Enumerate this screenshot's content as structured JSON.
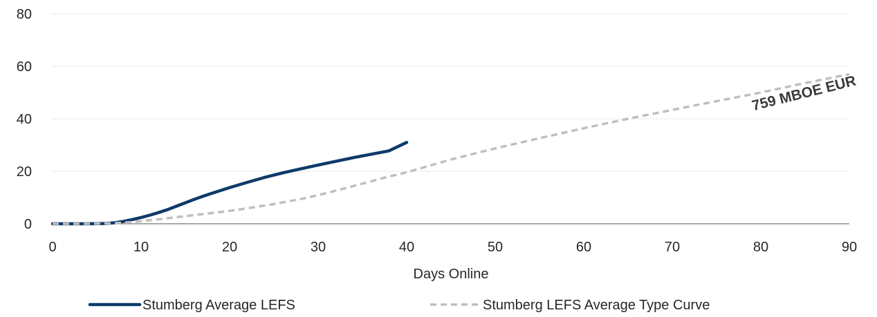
{
  "chart_data": {
    "type": "line",
    "xlabel": "Days Online",
    "ylabel": "",
    "xlim": [
      0,
      90
    ],
    "ylim": [
      0,
      80
    ],
    "xticks": [
      "0",
      "10",
      "20",
      "30",
      "40",
      "50",
      "60",
      "70",
      "80",
      "90"
    ],
    "yticks": [
      "0",
      "20",
      "40",
      "60",
      "80"
    ],
    "grid": "horizontal-dotted",
    "legend": "bottom",
    "series": [
      {
        "name": "Stumberg Average LEFS",
        "color": "#0e3a6a",
        "style": "solid",
        "x": [
          0,
          2,
          4,
          6,
          7,
          8,
          9,
          10,
          11,
          12,
          13,
          14,
          15,
          16,
          17,
          18,
          20,
          22,
          24,
          26,
          28,
          30,
          32,
          34,
          36,
          38,
          40
        ],
        "y": [
          0,
          0,
          0,
          0.1,
          0.4,
          0.9,
          1.6,
          2.4,
          3.3,
          4.3,
          5.4,
          6.7,
          8.0,
          9.3,
          10.5,
          11.6,
          13.8,
          15.8,
          17.7,
          19.4,
          20.9,
          22.4,
          23.8,
          25.2,
          26.5,
          27.8,
          31.0
        ]
      },
      {
        "name": "Stumberg LEFS Average Type Curve",
        "color": "#bfbfbf",
        "style": "dashed",
        "x": [
          0,
          2,
          4,
          6,
          8,
          10,
          12,
          15,
          18,
          20,
          22,
          25,
          28,
          30,
          32,
          35,
          38,
          40,
          45,
          50,
          55,
          60,
          65,
          70,
          75,
          80,
          85,
          90
        ],
        "y": [
          0,
          0,
          0,
          0.1,
          0.4,
          1.0,
          1.7,
          2.9,
          4.1,
          4.9,
          5.9,
          7.5,
          9.4,
          10.9,
          12.6,
          15.3,
          18.0,
          19.6,
          24.5,
          28.7,
          32.6,
          36.4,
          40.0,
          43.4,
          46.7,
          50.0,
          53.6,
          57.0
        ]
      }
    ],
    "annotations": [
      {
        "text": "759 MBOE EUR",
        "x": 85,
        "y": 48
      }
    ]
  }
}
